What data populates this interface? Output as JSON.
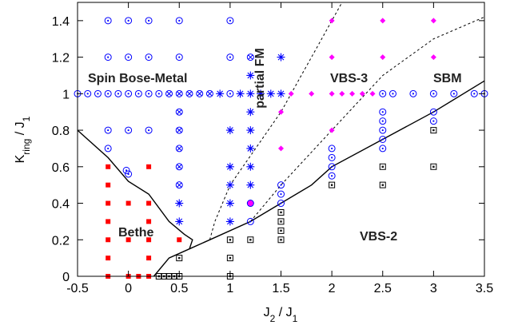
{
  "chart_data": {
    "type": "scatter",
    "x_label": [
      "J",
      "2",
      " / J",
      "1"
    ],
    "y_label": [
      "K",
      "ring",
      " / J",
      "1"
    ],
    "xlim": [
      -0.5,
      3.5
    ],
    "ylim": [
      0,
      1.5
    ],
    "xticks": [
      -0.5,
      0,
      0.5,
      1,
      1.5,
      2,
      2.5,
      3,
      3.5
    ],
    "yticks": [
      0,
      0.2,
      0.4,
      0.6,
      0.8,
      1,
      1.2,
      1.4
    ],
    "annotations": [
      "Spin Bose-Metal",
      "Bethe",
      "partial FM",
      "VBS-3",
      "SBM",
      "VBS-2"
    ],
    "series": [
      {
        "marker": "circle-dot",
        "color": "#0000ff",
        "x": [
          -0.2,
          0,
          0.2,
          0.5,
          1,
          -0.2,
          0,
          0.2,
          0.5,
          1,
          -0.5,
          -0.4,
          -0.3,
          -0.2,
          -0.1,
          0,
          0.1,
          0.2,
          0.3,
          1,
          2.5,
          2.6,
          2.8,
          3,
          3.2,
          3.4,
          3.5,
          -0.2,
          0,
          0.2,
          -0.2,
          -0.02,
          0,
          1.2,
          1.5,
          1.5,
          1.5,
          2,
          2,
          2,
          2,
          2.5,
          2.5,
          2.5,
          2.5,
          2.5,
          3,
          3
        ],
        "y": [
          1.4,
          1.4,
          1.4,
          1.4,
          1.4,
          1.2,
          1.2,
          1.2,
          1.2,
          1.2,
          1,
          1,
          1,
          1,
          1,
          1,
          1,
          1,
          1,
          1,
          1,
          1,
          1,
          1,
          1,
          1,
          1,
          0.8,
          0.8,
          0.8,
          0.7,
          0.58,
          0.56,
          0.3,
          0.5,
          0.45,
          0.4,
          0.7,
          0.65,
          0.6,
          0.55,
          0.9,
          0.85,
          0.8,
          0.75,
          0.7,
          0.9,
          0.85
        ]
      },
      {
        "marker": "circle-x",
        "color": "#0000ff",
        "x": [
          0.4,
          0.5,
          0.6,
          0.7,
          0.8,
          0.5,
          0.5,
          0.5,
          0.5,
          0.5,
          1.2
        ],
        "y": [
          1,
          1,
          1,
          1,
          1,
          0.9,
          0.8,
          0.7,
          0.6,
          0.5,
          1.2
        ]
      },
      {
        "marker": "asterisk",
        "color": "#0000ff",
        "x": [
          0.5,
          0.5,
          1,
          1,
          1,
          1,
          1,
          1.2,
          1.2,
          1.2,
          1.2,
          1.2,
          1.2,
          1.5,
          0.9,
          1.1,
          1.2,
          1.3,
          1.4,
          1.5
        ],
        "y": [
          0.4,
          0.3,
          0.8,
          0.6,
          0.5,
          0.4,
          0.3,
          1.1,
          0.9,
          0.8,
          0.7,
          0.6,
          0.5,
          1.2,
          1,
          1,
          1,
          1,
          1,
          1
        ]
      },
      {
        "marker": "square-filled",
        "color": "#ff0000",
        "x": [
          -0.2,
          -0.2,
          -0.2,
          -0.2,
          -0.2,
          -0.2,
          -0.2,
          0,
          0,
          0,
          0.1,
          0.2,
          0.2,
          0.2,
          0.2,
          0.2,
          0.2,
          0.5
        ],
        "y": [
          0.6,
          0.5,
          0.4,
          0.3,
          0.2,
          0.1,
          0,
          0.4,
          0.2,
          0,
          0,
          0.6,
          0.4,
          0.3,
          0.2,
          0.1,
          0,
          0.2
        ]
      },
      {
        "marker": "square-dot",
        "color": "#000000",
        "x": [
          0.3,
          0.35,
          0.4,
          0.45,
          0.5,
          0.5,
          1,
          1,
          1,
          1.2,
          1.5,
          1.5,
          1.5,
          1.5,
          2,
          2.5,
          2.5,
          3,
          3
        ],
        "y": [
          0,
          0,
          0,
          0,
          0,
          0.1,
          0.2,
          0.1,
          0,
          0.2,
          0.35,
          0.3,
          0.25,
          0.2,
          0.5,
          0.6,
          0.5,
          0.8,
          0.6
        ]
      },
      {
        "marker": "diamond",
        "color": "#ff00ff",
        "x": [
          2,
          2.5,
          3,
          2,
          2.5,
          3,
          1.6,
          1.8,
          2,
          2.1,
          2.2,
          2.3,
          2.4,
          1.5,
          1.5,
          2
        ],
        "y": [
          1.4,
          1.4,
          1.4,
          1.2,
          1.2,
          1.2,
          1,
          1,
          1,
          1,
          1,
          1,
          1,
          0.9,
          0.7,
          0.8
        ]
      },
      {
        "marker": "circle-filled",
        "color": "#ff00ff",
        "x": [
          1.2
        ],
        "y": [
          0.4
        ]
      }
    ],
    "boundaries": [
      {
        "style": "solid",
        "x": [
          -0.5,
          -0.2,
          0,
          0.2,
          0.4,
          0.55,
          0.63,
          0.6
        ],
        "y": [
          0.8,
          0.65,
          0.52,
          0.45,
          0.3,
          0.23,
          0.2,
          0.15
        ]
      },
      {
        "style": "solid",
        "x": [
          0.25,
          0.4,
          0.6,
          0.8,
          1.2,
          1.5,
          1.8,
          2,
          2.5,
          3,
          3.5
        ],
        "y": [
          0,
          0.1,
          0.15,
          0.2,
          0.3,
          0.4,
          0.5,
          0.6,
          0.75,
          0.9,
          1.07
        ]
      },
      {
        "style": "dashed",
        "x": [
          0.8,
          0.85,
          1,
          1.5,
          2,
          2.1
        ],
        "y": [
          0.2,
          0.3,
          0.5,
          0.9,
          1.4,
          1.5
        ]
      },
      {
        "style": "dashed",
        "x": [
          1.2,
          1.5,
          2,
          2.5,
          3,
          3.5
        ],
        "y": [
          0.3,
          0.5,
          0.8,
          1.1,
          1.3,
          1.42
        ]
      }
    ]
  }
}
